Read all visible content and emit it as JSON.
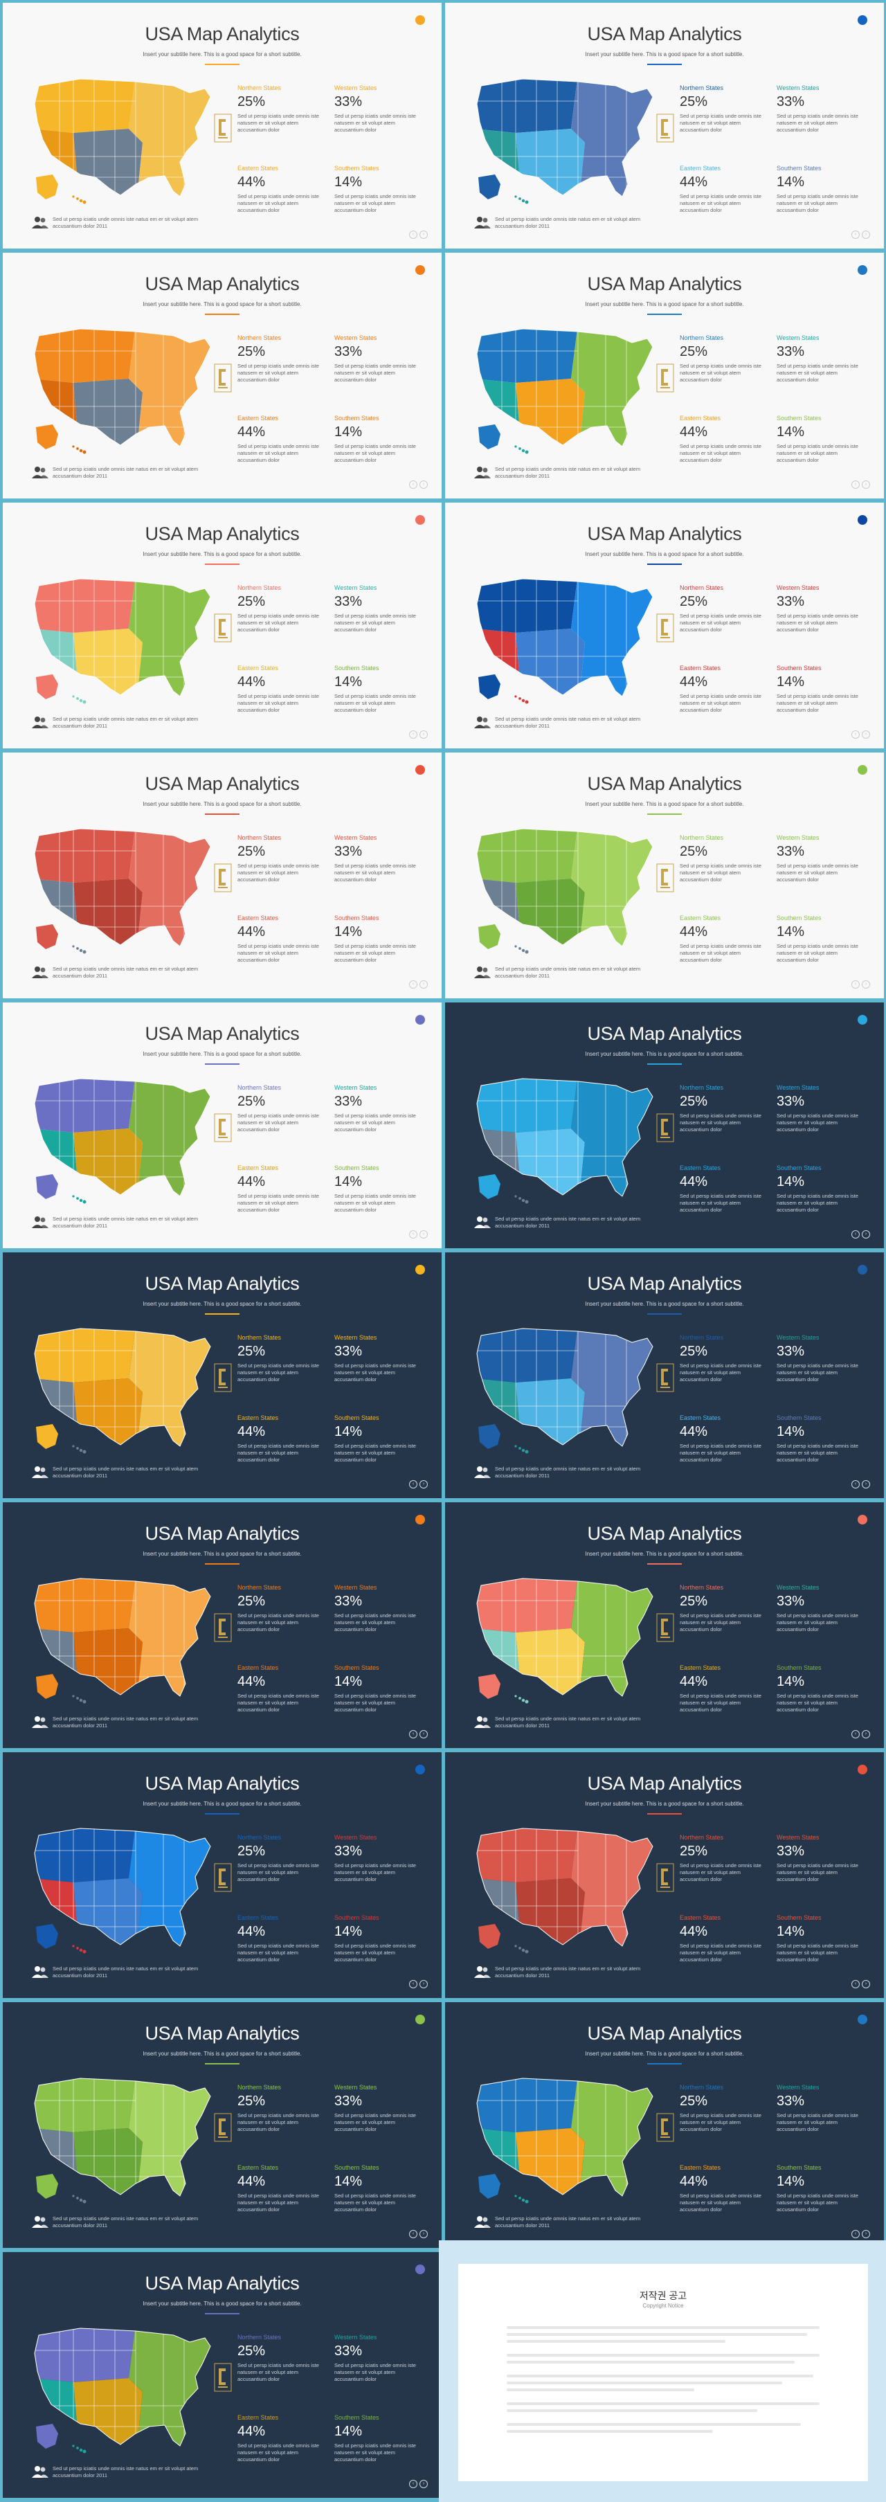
{
  "slide": {
    "title": "USA Map Analytics",
    "subtitle": "Insert your subtitle here. This is a good space for a short subtitle.",
    "desc": "Sed ut persp iciatis unde omnis iste natusem er sit volupt atem accusantium dolor",
    "footer": "Sed ut persp iciatis unde omnis iste natus em er sit volupt atem accusantium dolor 2011",
    "nav_prev": "‹",
    "nav_next": "›",
    "stats": [
      {
        "label": "Northern States",
        "pct": "25%"
      },
      {
        "label": "Western States",
        "pct": "33%"
      },
      {
        "label": "Eastern States",
        "pct": "44%"
      },
      {
        "label": "Southern States",
        "pct": "14%"
      }
    ]
  },
  "themes": [
    {
      "mode": "light",
      "accent": "#f5a623",
      "map": [
        "#f6b82a",
        "#e89a17",
        "#6d7f93",
        "#f2c14e"
      ],
      "labels": [
        "#f5a623",
        "#f5a623",
        "#f5a623",
        "#f5a623"
      ]
    },
    {
      "mode": "light",
      "accent": "#1565c0",
      "map": [
        "#1f5fa8",
        "#2a9d9b",
        "#4fb3e3",
        "#5b7bb8"
      ],
      "labels": [
        "#1f5fa8",
        "#2a9d9b",
        "#4fb3e3",
        "#5b7bb8"
      ]
    },
    {
      "mode": "light",
      "accent": "#f07d1a",
      "map": [
        "#f28a1f",
        "#d96a0e",
        "#6d7f93",
        "#f6a84a"
      ],
      "labels": [
        "#f07d1a",
        "#f07d1a",
        "#f07d1a",
        "#f07d1a"
      ]
    },
    {
      "mode": "light",
      "accent": "#1f78c1",
      "map": [
        "#1f78c1",
        "#1fa8a0",
        "#f4a11e",
        "#8bc34a"
      ],
      "labels": [
        "#1f78c1",
        "#1fa8a0",
        "#f4a11e",
        "#8bc34a"
      ]
    },
    {
      "mode": "light",
      "accent": "#f06f5f",
      "map": [
        "#f0776a",
        "#7fcfc3",
        "#f7d154",
        "#8bc34a"
      ],
      "labels": [
        "#f06f5f",
        "#2bb2a6",
        "#e0b21f",
        "#7cb342"
      ]
    },
    {
      "mode": "light",
      "accent": "#0d47a1",
      "map": [
        "#0d4fa3",
        "#d63a3a",
        "#3d7fd1",
        "#1e88e5"
      ],
      "labels": [
        "#d63a3a",
        "#d63a3a",
        "#d63a3a",
        "#d63a3a"
      ]
    },
    {
      "mode": "light",
      "accent": "#e8523d",
      "map": [
        "#d9574a",
        "#6d7f93",
        "#b94236",
        "#e36d5f"
      ],
      "labels": [
        "#e8523d",
        "#e8523d",
        "#e8523d",
        "#e8523d"
      ]
    },
    {
      "mode": "light",
      "accent": "#8bc34a",
      "map": [
        "#8bc34a",
        "#6d7f93",
        "#6aa83a",
        "#a5d35f"
      ],
      "labels": [
        "#8bc34a",
        "#8bc34a",
        "#8bc34a",
        "#8bc34a"
      ]
    },
    {
      "mode": "light",
      "accent": "#6a6fc1",
      "map": [
        "#6b70c4",
        "#1aa79c",
        "#d4a017",
        "#7cb342"
      ],
      "labels": [
        "#6b70c4",
        "#1aa79c",
        "#d4a017",
        "#7cb342"
      ]
    },
    {
      "mode": "dark",
      "accent": "#29a8e0",
      "map": [
        "#2aa9e0",
        "#6d7f93",
        "#5cc2ef",
        "#1e90c7"
      ],
      "labels": [
        "#29a8e0",
        "#29a8e0",
        "#29a8e0",
        "#29a8e0"
      ]
    },
    {
      "mode": "dark",
      "accent": "#f5b51e",
      "map": [
        "#f6b82a",
        "#6d7f93",
        "#e89a17",
        "#f2c14e"
      ],
      "labels": [
        "#f5b51e",
        "#f5b51e",
        "#f5b51e",
        "#f5b51e"
      ]
    },
    {
      "mode": "dark",
      "accent": "#1f5fa8",
      "map": [
        "#1f5fa8",
        "#2a9d9b",
        "#4fb3e3",
        "#5b7bb8"
      ],
      "labels": [
        "#1f5fa8",
        "#2a9d9b",
        "#4fb3e3",
        "#5b7bb8"
      ]
    },
    {
      "mode": "dark",
      "accent": "#f07d1a",
      "map": [
        "#f28a1f",
        "#6d7f93",
        "#d96a0e",
        "#f6a84a"
      ],
      "labels": [
        "#f07d1a",
        "#f07d1a",
        "#f07d1a",
        "#f07d1a"
      ]
    },
    {
      "mode": "dark",
      "accent": "#f06f5f",
      "map": [
        "#f0776a",
        "#7fcfc3",
        "#f7d154",
        "#8bc34a"
      ],
      "labels": [
        "#f06f5f",
        "#2bb2a6",
        "#e0b21f",
        "#7cb342"
      ]
    },
    {
      "mode": "dark",
      "accent": "#1565c0",
      "map": [
        "#1559b0",
        "#d63a3a",
        "#3d7fd1",
        "#1e88e5"
      ],
      "labels": [
        "#1565c0",
        "#d63a3a",
        "#1565c0",
        "#d63a3a"
      ]
    },
    {
      "mode": "dark",
      "accent": "#e8523d",
      "map": [
        "#d9574a",
        "#6d7f93",
        "#b94236",
        "#e36d5f"
      ],
      "labels": [
        "#e8523d",
        "#e8523d",
        "#e8523d",
        "#e8523d"
      ]
    },
    {
      "mode": "dark",
      "accent": "#8bc34a",
      "map": [
        "#8bc34a",
        "#6d7f93",
        "#6aa83a",
        "#a5d35f"
      ],
      "labels": [
        "#8bc34a",
        "#8bc34a",
        "#8bc34a",
        "#8bc34a"
      ]
    },
    {
      "mode": "dark",
      "accent": "#1f78c1",
      "map": [
        "#1f78c1",
        "#1fa8a0",
        "#f4a11e",
        "#8bc34a"
      ],
      "labels": [
        "#1f78c1",
        "#1fa8a0",
        "#f4a11e",
        "#8bc34a"
      ]
    },
    {
      "mode": "dark",
      "accent": "#6a6fc1",
      "map": [
        "#6b70c4",
        "#1aa79c",
        "#d4a017",
        "#7cb342"
      ],
      "labels": [
        "#6b70c4",
        "#1aa79c",
        "#d4a017",
        "#7cb342"
      ]
    }
  ],
  "notice": {
    "title": "저작권 공고",
    "subtitle": "Copyright Notice"
  },
  "icons": {
    "footer": "people-icon",
    "logo": "brand-logo-icon"
  }
}
